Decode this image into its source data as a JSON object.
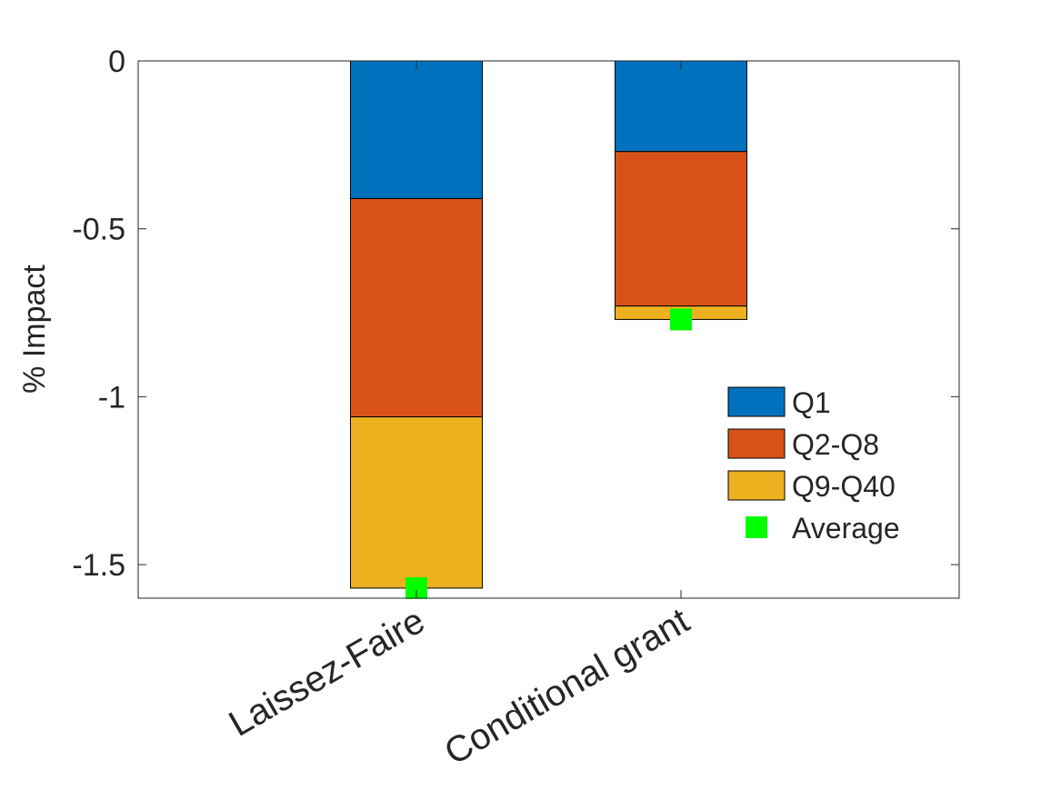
{
  "chart_data": {
    "type": "bar",
    "stacked": true,
    "categories": [
      "Laissez-Faire",
      "Conditional grant"
    ],
    "series": [
      {
        "name": "Q1",
        "color": "#0072BD",
        "values": [
          -0.41,
          -0.27
        ]
      },
      {
        "name": "Q2-Q8",
        "color": "#D95319",
        "values": [
          -0.65,
          -0.46
        ]
      },
      {
        "name": "Q9-Q40",
        "color": "#EDB120",
        "values": [
          -0.51,
          -0.04
        ]
      }
    ],
    "markers": {
      "name": "Average",
      "color": "#00FF00",
      "values": [
        -1.57,
        -0.77
      ]
    },
    "ylabel": "% Impact",
    "xlabel": "",
    "ylim": [
      -1.6,
      0
    ],
    "yticks": [
      0,
      -0.5,
      -1,
      -1.5
    ],
    "ytick_labels": [
      "0",
      "-0.5",
      "-1",
      "-1.5"
    ],
    "grid": false,
    "legend_position": "east"
  }
}
